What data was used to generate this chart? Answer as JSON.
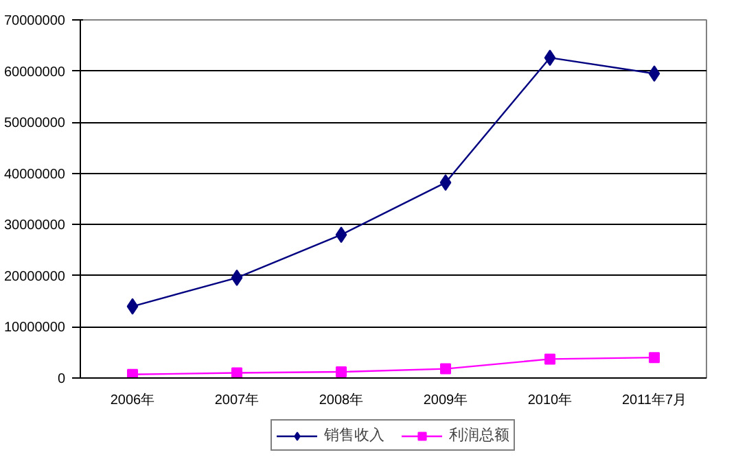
{
  "chart_data": {
    "type": "line",
    "categories": [
      "2006年",
      "2007年",
      "2008年",
      "2009年",
      "2010年",
      "2011年7月"
    ],
    "series": [
      {
        "name": "销售收入",
        "color": "#000080",
        "marker": "diamond",
        "values": [
          14000000,
          19600000,
          28000000,
          38200000,
          62600000,
          59500000
        ]
      },
      {
        "name": "利润总额",
        "color": "#ff00ff",
        "marker": "square",
        "values": [
          700000,
          1000000,
          1200000,
          1800000,
          3700000,
          4000000
        ]
      }
    ],
    "ylim": [
      0,
      70000000
    ],
    "yticks": [
      0,
      10000000,
      20000000,
      30000000,
      40000000,
      50000000,
      60000000,
      70000000
    ],
    "grid": "y",
    "legend": "bottom",
    "line_style": "solid"
  }
}
